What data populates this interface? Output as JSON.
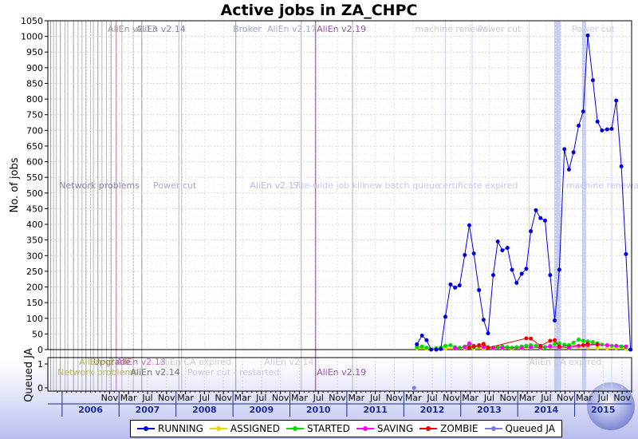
{
  "chart_data": {
    "type": "line",
    "title": "Active jobs in ZA_CHPC",
    "ylabel_main": "No. of jobs",
    "ylabel_bottom": "Queued JA",
    "xlabel": "",
    "ylim_main": [
      0,
      1050
    ],
    "yticks_main": [
      0,
      50,
      100,
      150,
      200,
      250,
      300,
      350,
      400,
      450,
      500,
      550,
      600,
      650,
      700,
      750,
      800,
      850,
      900,
      950,
      1000,
      1050
    ],
    "ylim_bottom": [
      0,
      1
    ],
    "yticks_bottom": [
      0,
      1
    ],
    "grid": true,
    "legend_position": "bottom",
    "month_ticks": [
      "Nov",
      "Mar",
      "Jul",
      "Nov",
      "Mar",
      "Jul",
      "Nov",
      "Mar",
      "Jul",
      "Nov",
      "Mar",
      "Jul",
      "Nov",
      "Mar",
      "Jul",
      "Nov",
      "Mar",
      "Jul",
      "Nov",
      "Mar",
      "Jul",
      "Nov",
      "Mar",
      "Jul",
      "Nov",
      "Mar",
      "Jul",
      "Nov"
    ],
    "years": [
      "2006",
      "2007",
      "2008",
      "2009",
      "2010",
      "2011",
      "2012",
      "2013",
      "2014",
      "2015"
    ],
    "series": [
      {
        "name": "RUNNING",
        "color": "#0000dd",
        "x": [
          2012.23,
          2012.32,
          2012.4,
          2012.48,
          2012.57,
          2012.65,
          2012.73,
          2012.82,
          2012.9,
          2012.98,
          2013.07,
          2013.15,
          2013.23,
          2013.32,
          2013.4,
          2013.48,
          2013.57,
          2013.65,
          2013.73,
          2013.82,
          2013.9,
          2013.98,
          2014.07,
          2014.15,
          2014.23,
          2014.32,
          2014.4,
          2014.48,
          2014.57,
          2014.65,
          2014.73,
          2014.82,
          2014.9,
          2014.98,
          2015.07,
          2015.15,
          2015.23,
          2015.32,
          2015.4,
          2015.48,
          2015.57,
          2015.65,
          2015.73,
          2015.82,
          2015.9,
          2015.98
        ],
        "y": [
          17,
          45,
          30,
          0,
          0,
          2,
          105,
          208,
          198,
          205,
          302,
          397,
          307,
          190,
          95,
          52,
          238,
          345,
          317,
          325,
          255,
          213,
          242,
          258,
          378,
          445,
          420,
          412,
          238,
          93,
          255,
          640,
          575,
          630,
          715,
          760,
          1003,
          860,
          728,
          700,
          703,
          705,
          795,
          585,
          305,
          0
        ]
      },
      {
        "name": "ASSIGNED",
        "color": "#dddd00",
        "x": [
          2012.23,
          2012.4,
          2012.57,
          2012.73,
          2012.9,
          2013.07,
          2013.23,
          2013.4,
          2013.57,
          2013.73,
          2013.9,
          2014.07,
          2014.23,
          2014.4,
          2014.57,
          2014.73,
          2014.9,
          2015.07,
          2015.23,
          2015.4,
          2015.57,
          2015.73,
          2015.9
        ],
        "y": [
          5,
          3,
          2,
          4,
          3,
          5,
          4,
          3,
          4,
          5,
          3,
          4,
          6,
          5,
          7,
          6,
          5,
          8,
          6,
          5,
          4,
          5,
          3
        ]
      },
      {
        "name": "STARTED",
        "color": "#00dd00",
        "x": [
          2012.23,
          2012.32,
          2012.4,
          2012.57,
          2012.65,
          2012.73,
          2012.82,
          2012.9,
          2012.98,
          2013.07,
          2013.15,
          2013.23,
          2013.32,
          2013.4,
          2013.48,
          2013.57,
          2013.65,
          2013.73,
          2013.82,
          2013.9,
          2013.98,
          2014.07,
          2014.15,
          2014.23,
          2014.32,
          2014.4,
          2014.48,
          2014.57,
          2014.65,
          2014.73,
          2014.82,
          2014.9,
          2014.98,
          2015.07,
          2015.15,
          2015.23,
          2015.32,
          2015.4,
          2015.48,
          2015.57,
          2015.65,
          2015.73,
          2015.82,
          2015.9
        ],
        "y": [
          8,
          10,
          6,
          4,
          6,
          12,
          14,
          8,
          6,
          10,
          12,
          8,
          10,
          12,
          8,
          6,
          8,
          10,
          8,
          6,
          8,
          10,
          12,
          14,
          12,
          10,
          8,
          12,
          18,
          20,
          16,
          14,
          22,
          32,
          28,
          26,
          24,
          20,
          16,
          14,
          12,
          12,
          10,
          8
        ]
      },
      {
        "name": "SAVING",
        "color": "#ff00ff",
        "x": [
          2012.9,
          2013.07,
          2013.15,
          2013.23,
          2013.4,
          2013.57,
          2013.73,
          2014.07,
          2014.23,
          2014.4,
          2014.57,
          2014.73,
          2014.9,
          2015.07,
          2015.23,
          2015.4,
          2015.57,
          2015.73,
          2015.9
        ],
        "y": [
          4,
          8,
          20,
          12,
          8,
          5,
          6,
          5,
          8,
          6,
          10,
          8,
          6,
          12,
          14,
          16,
          14,
          12,
          10
        ]
      },
      {
        "name": "ZOMBIE",
        "color": "#ee0000",
        "x": [
          2013.15,
          2013.23,
          2013.32,
          2013.4,
          2013.48,
          2014.15,
          2014.23,
          2014.4,
          2014.57,
          2014.65,
          2014.73,
          2015.15,
          2015.23,
          2015.4
        ],
        "y": [
          6,
          10,
          14,
          18,
          6,
          36,
          35,
          12,
          28,
          30,
          10,
          14,
          18,
          16
        ]
      }
    ],
    "queued_series": {
      "name": "Queued JA",
      "color": "#7777ee",
      "x": [
        2012.18
      ],
      "y": [
        0
      ]
    },
    "annotations_top": [
      "AliEn v2.19"
    ],
    "annotations_mid": [
      "AliEn v2.17",
      "Site-wide job kill",
      "new batch queue",
      "certificate expired",
      "machine renewal",
      "Power cut"
    ],
    "annotations_bottom": [
      "AliEn v2.14",
      "AliEn v2.19",
      "Network problems",
      "AliEn v2.13",
      "Upgrade",
      "AliEn CA expired",
      "Power cut - restarted"
    ]
  }
}
